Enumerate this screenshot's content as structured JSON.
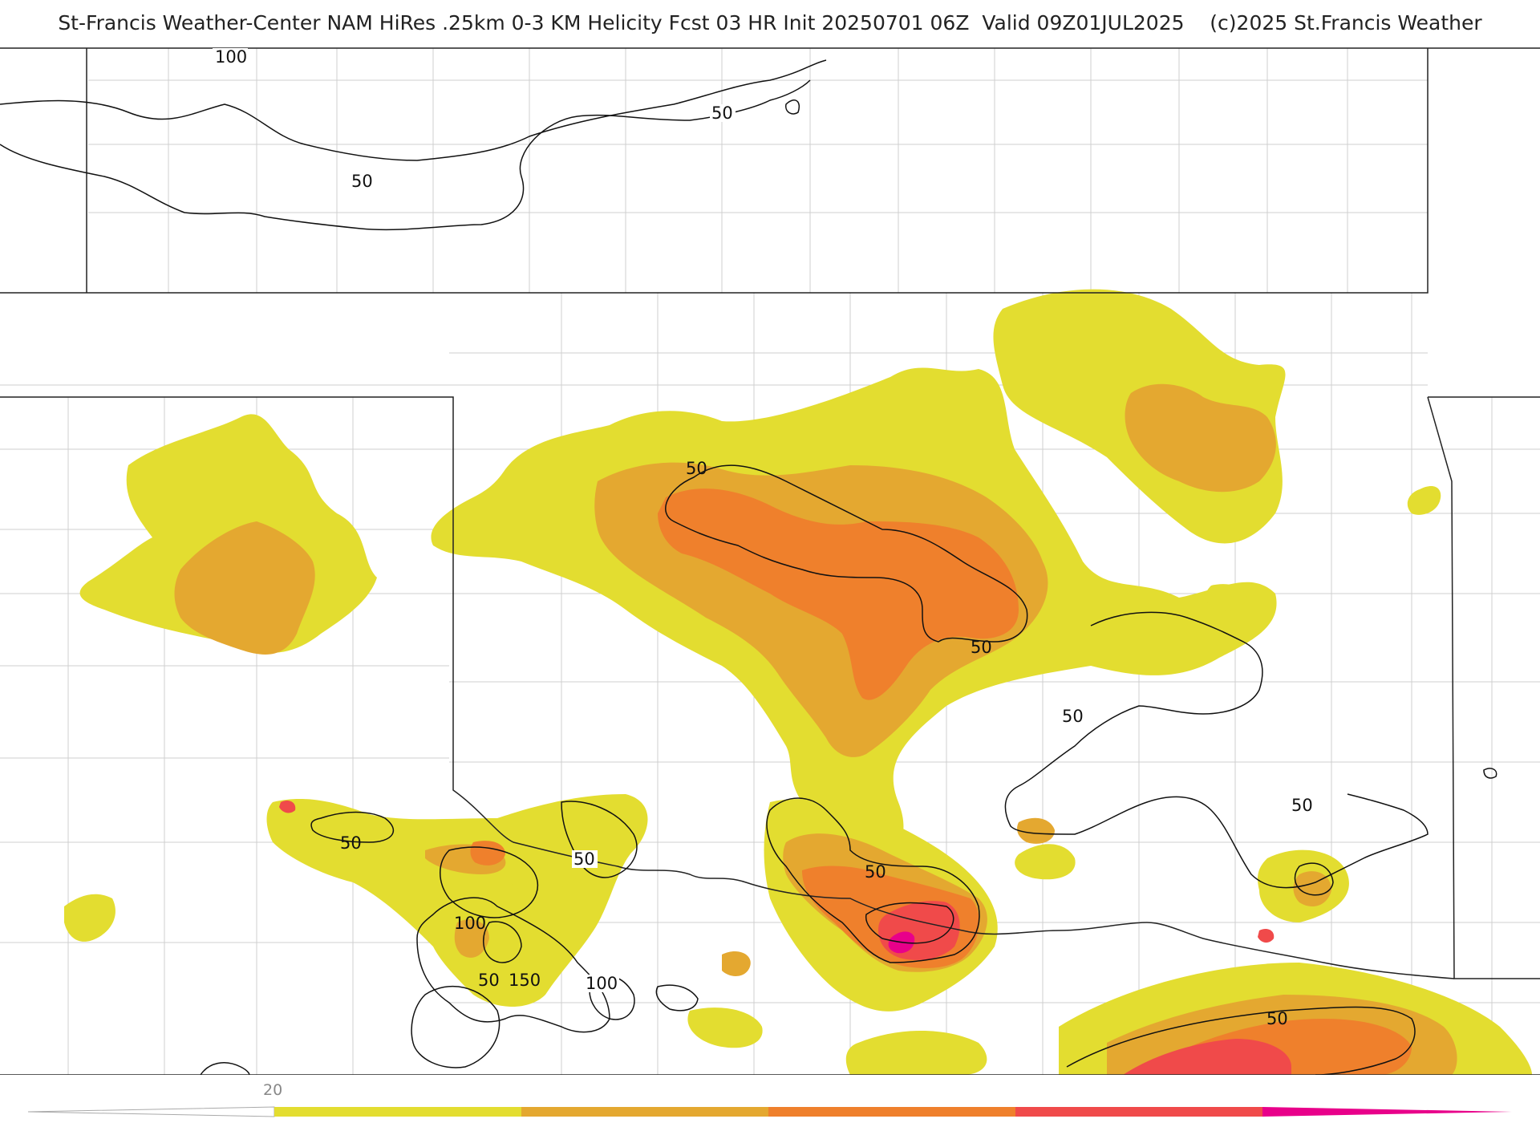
{
  "title": "St-Francis Weather-Center NAM HiRes .25km 0-3 KM Helicity Fcst 03 HR Init 20250701 06Z  Valid 09Z01JUL2025    (c)2025 St.Francis Weather",
  "colors": {
    "fill_20_50": "#e3dd30",
    "fill_50_100": "#e4a830",
    "fill_100_150": "#ef802c",
    "fill_150_200": "#f04a4a",
    "fill_200_plus": "#e8008a",
    "state_border": "#222222",
    "county_border": "#c8c8c8",
    "contour": "#111111"
  },
  "colorbar": {
    "tick_label": "20"
  },
  "contour_labels": {
    "l1": "100",
    "l2": "50",
    "l3": "50",
    "l4": "50",
    "l5": "50",
    "l6": "50",
    "l7": "50",
    "l8": "50",
    "l9": "50",
    "l10": "100",
    "l11": "50",
    "l12": "150",
    "l13": "100",
    "l14": "50",
    "l15": "50"
  }
}
